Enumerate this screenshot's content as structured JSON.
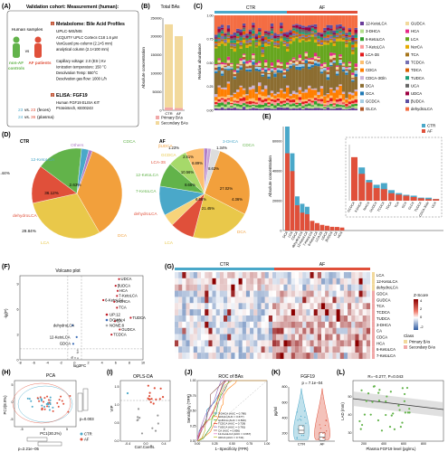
{
  "panels": {
    "A": {
      "letter": "(A)",
      "title": "Validation cohort: Measurement (human):",
      "human_label": "Human samples",
      "group1": "non-AF",
      "group1b": "controls",
      "vs": "vs",
      "group2": "AF patients",
      "s1_title": "Metabolome: Bile Acid Profiles",
      "s1_num": "1",
      "s1_method": "UPLC-MS/MS",
      "s1_lines": [
        "ACQUITY UPLC Cortecs C18 1.6 μM",
        "VanGuard pre-column (2.1×5 mm)",
        "analytical column (2.1×100 mm)",
        "",
        "Capillary voltage: 2.0 (ES-) Kv",
        "Ionization temperature: 150 °C",
        "Desolvation Temp: 550°C",
        "Desolvation gas flow: 1000 L/h"
      ],
      "s2_num": "2",
      "s2_title": "ELISA: FGF19",
      "s2_lines": [
        "Human FGF19 ELISA KIT",
        "Proteintech, KE00243"
      ],
      "counts1_a": "23",
      "counts1_vs": "vs.",
      "counts1_b": "23",
      "counts1_note": "(feces)",
      "counts2_a": "24",
      "counts2_vs": "vs.",
      "counts2_b": "36",
      "counts2_note": "(plasma)"
    },
    "B": {
      "letter": "(B)",
      "title": "Total BAs",
      "ylabel": "Absolute concentration",
      "yticks": [
        "0",
        "50000",
        "100000",
        "150000",
        "200000",
        "250000"
      ],
      "xticks": [
        "CTR",
        "AF"
      ],
      "legend": [
        "Primary BAs",
        "Secondary BAs"
      ]
    },
    "C": {
      "letter": "(C)",
      "ylabel": "Relative abundance",
      "group_labels": [
        "CTR",
        "AF"
      ],
      "yticks": [
        "0.00",
        "0.25",
        "0.50",
        "0.75",
        "1.00"
      ],
      "legend_col1": [
        "12-KetoLCA",
        "3-DHCA",
        "6-KetoLCA",
        "7-KetoLCA",
        "LCA-3S",
        "CA",
        "CDCA",
        "CDCA-3Gln",
        "DCA",
        "GCA",
        "GCDCA",
        "GLCA"
      ],
      "legend_col2": [
        "GUDCA",
        "HCA",
        "LCA",
        "NorCA",
        "TCA",
        "TCDCA",
        "TDCA",
        "TUDCA",
        "UCA",
        "UDCA",
        "βUDCA",
        "dehydroLCA"
      ]
    },
    "D": {
      "letter": "(D)",
      "left_title": "CTR",
      "right_title": "AF",
      "left_labels": [
        "Others",
        "CDCA",
        "12-KetoLCA",
        "dehydroLCA",
        "LCA",
        "DCA"
      ],
      "left_pcts": [
        "2.63%",
        "16.44%",
        "13.67%",
        "29.84%",
        "36.12%"
      ],
      "right_labels": [
        "βUDCA",
        "3-DHCA",
        "LCA-3S",
        "GCDCA",
        "CDCA",
        "12-KetoLCA",
        "7-KetoLCA",
        "dehydroLCA",
        "LCA",
        "DCA"
      ],
      "right_pcts": [
        "1.23%",
        "1.34%",
        "6.89%",
        "2.51%",
        "10.56%",
        "8.65%",
        "21.45%",
        "27.02%",
        "8.63%",
        "4.36%",
        "6.66%"
      ]
    },
    "E": {
      "letter": "(E)",
      "ylabel": "Absolute concentration",
      "yticks": [
        "0",
        "20000",
        "40000",
        "60000"
      ],
      "legend": [
        "CTR",
        "AF"
      ],
      "xlabels_main": [
        "DCA",
        "LCA",
        "CDCA",
        "dehydroLCA",
        "12-KetoLCA",
        "7-KetoLCA",
        "6-KetoLCA",
        "LCA-3S",
        "UDCA",
        "βUDCA",
        "CA",
        "HCA"
      ],
      "xlabels_inset": [
        "GCDCA",
        "3-DHCA",
        "NorCA",
        "GUDCA",
        "TCDCA",
        "TDCA",
        "TCA",
        "GCA",
        "GLCA",
        "TUDCA",
        "CDCA-3Gln",
        "UCA"
      ]
    },
    "F": {
      "letter": "(F)",
      "title": "Volcano plot",
      "xlabel": "log2FC",
      "ylabel": "-lg(P)",
      "xticks": [
        "-8",
        "-6",
        "-4",
        "-2",
        "0",
        "2",
        "4",
        "6",
        "8",
        "10"
      ],
      "yticks": [
        "0",
        "3",
        "6",
        "9"
      ],
      "up_labels": [
        "UDCA",
        "βUDCA",
        "HCA",
        "7-KetoLCA",
        "6-KetoLCA",
        "3-DHCA",
        "TCA",
        "TUDCA",
        "CA",
        "GUDCA",
        "TCDCA"
      ],
      "down_labels": [
        "dehydroLCA",
        "12-KetoLCA",
        "GDCA"
      ],
      "legend": [
        "UP:12",
        "DOWN:4",
        "NONE:8"
      ]
    },
    "G": {
      "letter": "(G)",
      "group_labels": [
        "CTR",
        "AF"
      ],
      "row_labels": [
        "LCA",
        "12-KetoLCA",
        "dehydroLCA",
        "GDCA",
        "GUDCA",
        "TCA",
        "TCDCA",
        "TUDCA",
        "3-DHCA",
        "CA",
        "CDCA",
        "HCA",
        "6-KetoLCA",
        "7-KetoLCA"
      ],
      "zscore_title": "Z-Score",
      "zticks": [
        "4",
        "2",
        "0",
        "-2"
      ],
      "class_title": "Class",
      "class_labels": [
        "Primary BAs",
        "Secondary BAs"
      ]
    },
    "H": {
      "letter": "(H)",
      "title": "PCA",
      "xlabel": "PC1(30.2%)",
      "ylabel": "PC2(8.9%)",
      "p_right": "p=0.003",
      "p_bottom": "p=2.21e−05",
      "legend": [
        "CTR",
        "AF"
      ],
      "xticks": [
        "-5",
        "0",
        "5"
      ],
      "yticks": [
        "5",
        "0",
        "-5"
      ]
    },
    "I": {
      "letter": "(I)",
      "title": "OPLS-DA",
      "xlabel": "Corr.Coeffs.",
      "ylabel": "VIP",
      "xticks": [
        "-0.4",
        "0.0",
        "0.4"
      ],
      "yticks": [
        "0.0",
        "0.5",
        "1.0",
        "1.5"
      ]
    },
    "J": {
      "letter": "(J)",
      "title": "ROC of BAs",
      "xlabel": "1−Specificity (FPR)",
      "ylabel": "Sensitivity (TPR)",
      "xticks": [
        "0.00",
        "0.25",
        "0.50",
        "0.75",
        "1.00"
      ],
      "yticks": [
        "0.00",
        "0.25",
        "0.50",
        "0.75",
        "1.00"
      ],
      "legend": [
        "3-DHCA (AUC = 0.780)",
        "GDCA (AUC = 0.677)",
        "GUDCA (AUC = 0.836)",
        "TCDCA (AUC = 0.728)",
        "TUDCA (AUC = 0.781)",
        "CA (AUC = 0.856)",
        "12-KetoLCA (AUC = 0.667)",
        "UDCA (AUC = 0.741)"
      ]
    },
    "K": {
      "letter": "(K)",
      "title": "FGF19",
      "ylabel": "pg/ml",
      "ptext": "p = 7.1e−04",
      "xticks": [
        "CTR",
        "AF"
      ],
      "yticks": [
        "200",
        "400",
        "600",
        "800"
      ]
    },
    "L": {
      "letter": "(L)",
      "stat": "R=−0.277, P=0.043",
      "xlabel": "Plasma FGF19 level (pg/mL)",
      "ylabel": "LAD (mm)",
      "xticks": [
        "200",
        "400",
        "600",
        "800"
      ],
      "yticks": [
        "30",
        "40",
        "50"
      ]
    }
  },
  "colors": {
    "ctr": "#4aa8c9",
    "af": "#e0503a",
    "primary": "#f1a8a8",
    "secondary": "#f2d99c",
    "green": "#62b34a",
    "orange": "#f2a03c",
    "volcano_up": "#c0202a",
    "volcano_down": "#3b6cb7",
    "grey": "#888888"
  },
  "chart_data": [
    {
      "panel": "B",
      "type": "bar",
      "categories": [
        "CTR",
        "AF"
      ],
      "series": [
        {
          "name": "Primary BAs",
          "values": [
            8000,
            6000
          ]
        },
        {
          "name": "Secondary BAs",
          "values": [
            225000,
            195000
          ]
        }
      ],
      "ylim": [
        0,
        250000
      ]
    },
    {
      "panel": "C",
      "type": "bar",
      "stacked": true,
      "groups": [
        "CTR",
        "AF"
      ]
    },
    {
      "panel": "D",
      "type": "pie",
      "title": "CTR",
      "slices": [
        {
          "label": "DCA",
          "value": 36.12
        },
        {
          "label": "LCA",
          "value": 29.84
        },
        {
          "label": "dehydroLCA",
          "value": 13.67
        },
        {
          "label": "12-KetoLCA",
          "value": 16.44
        },
        {
          "label": "CDCA",
          "value": 2.63
        },
        {
          "label": "Others",
          "value": 1.3
        }
      ]
    },
    {
      "panel": "D",
      "type": "pie",
      "title": "AF",
      "slices": [
        {
          "label": "DCA",
          "value": 27.02
        },
        {
          "label": "LCA",
          "value": 21.45
        },
        {
          "label": "dehydroLCA",
          "value": 8.65
        },
        {
          "label": "7-KetoLCA",
          "value": 4.36
        },
        {
          "label": "12-KetoLCA",
          "value": 10.56
        },
        {
          "label": "CDCA",
          "value": 8.63
        },
        {
          "label": "GCDCA",
          "value": 6.89
        },
        {
          "label": "LCA-3S",
          "value": 6.66
        },
        {
          "label": "3-DHCA",
          "value": 1.34
        },
        {
          "label": "βUDCA",
          "value": 1.23
        },
        {
          "label": "others",
          "value": 3.21
        }
      ]
    },
    {
      "panel": "E",
      "type": "bar",
      "categories": [
        "DCA",
        "LCA",
        "CDCA",
        "dehydroLCA",
        "12-KetoLCA",
        "7-KetoLCA",
        "6-KetoLCA",
        "LCA-3S",
        "UDCA",
        "βUDCA",
        "CA",
        "HCA"
      ],
      "series": [
        {
          "name": "CTR",
          "values": [
            70000,
            52000,
            23000,
            18000,
            16000,
            4000,
            3000,
            2500,
            2000,
            1800,
            1500,
            1000
          ]
        },
        {
          "name": "AF",
          "values": [
            52000,
            40000,
            17000,
            12000,
            11000,
            6500,
            5000,
            3800,
            3200,
            2500,
            2400,
            2000
          ]
        }
      ],
      "ylim": [
        0,
        70000
      ]
    },
    {
      "panel": "K",
      "type": "violin",
      "categories": [
        "CTR",
        "AF"
      ],
      "medians": [
        240,
        150
      ],
      "ylim": [
        100,
        800
      ]
    },
    {
      "panel": "L",
      "type": "scatter",
      "xlabel": "Plasma FGF19 level (pg/mL)",
      "ylabel": "LAD (mm)",
      "r": -0.277,
      "p": 0.043
    }
  ]
}
